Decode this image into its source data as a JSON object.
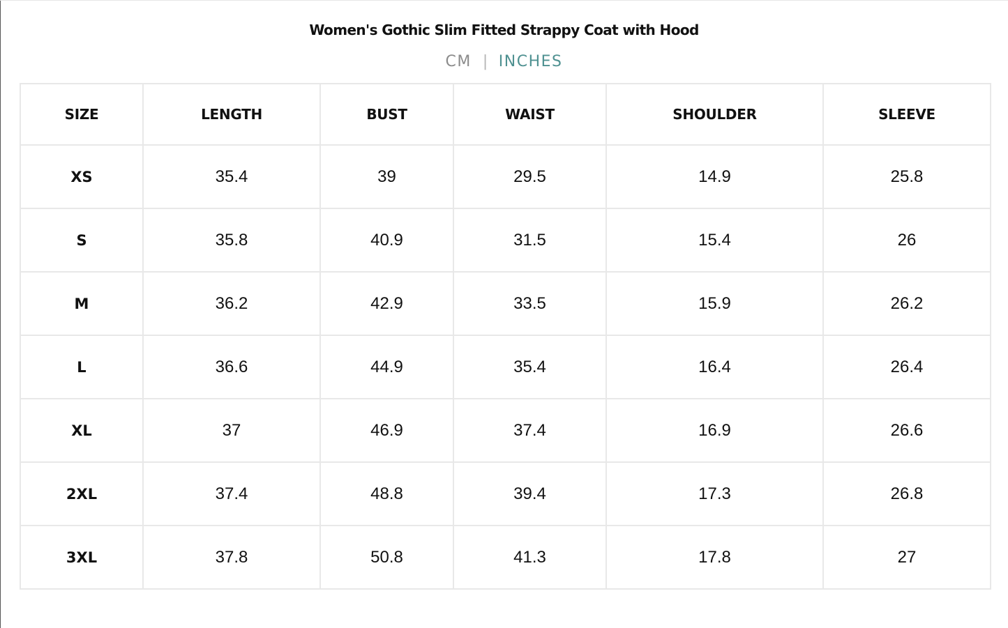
{
  "title": "Women's Gothic Slim Fitted Strappy Coat with Hood",
  "units": {
    "cm_label": "CM",
    "separator": "|",
    "inches_label": "INCHES",
    "active": "INCHES"
  },
  "colors": {
    "active_unit": "#4f9191",
    "inactive_unit": "#8c8c8c",
    "border": "#e8e8e8"
  },
  "table": {
    "headers": [
      "SIZE",
      "LENGTH",
      "BUST",
      "WAIST",
      "SHOULDER",
      "SLEEVE"
    ],
    "rows": [
      [
        "XS",
        "35.4",
        "39",
        "29.5",
        "14.9",
        "25.8"
      ],
      [
        "S",
        "35.8",
        "40.9",
        "31.5",
        "15.4",
        "26"
      ],
      [
        "M",
        "36.2",
        "42.9",
        "33.5",
        "15.9",
        "26.2"
      ],
      [
        "L",
        "36.6",
        "44.9",
        "35.4",
        "16.4",
        "26.4"
      ],
      [
        "XL",
        "37",
        "46.9",
        "37.4",
        "16.9",
        "26.6"
      ],
      [
        "2XL",
        "37.4",
        "48.8",
        "39.4",
        "17.3",
        "26.8"
      ],
      [
        "3XL",
        "37.8",
        "50.8",
        "41.3",
        "17.8",
        "27"
      ]
    ]
  }
}
